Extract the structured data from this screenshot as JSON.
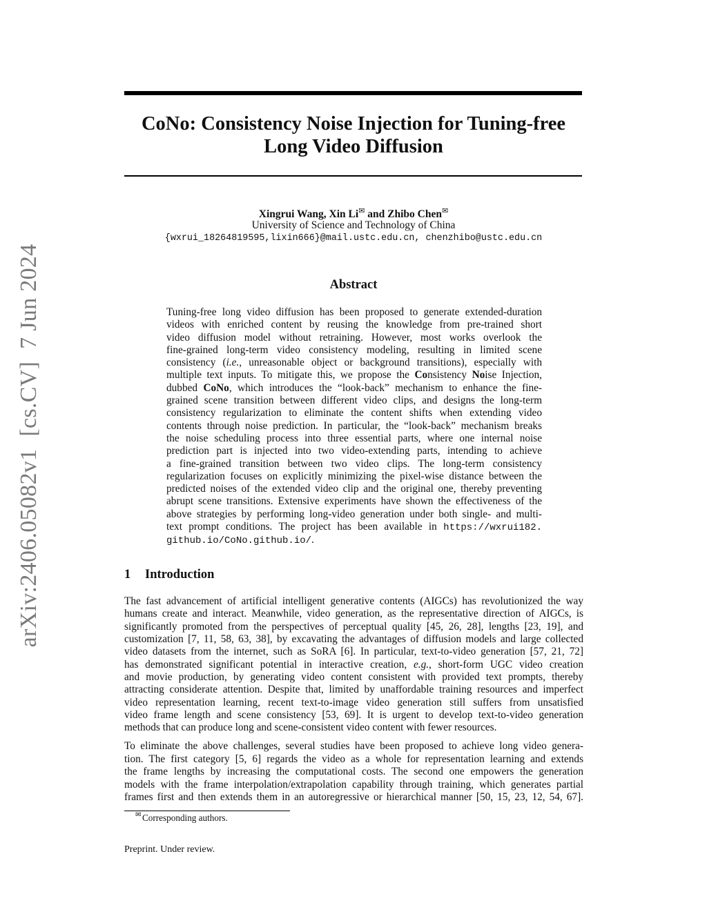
{
  "sidebar_stamp": {
    "id": "arXiv:2406.05082v1",
    "category": "[cs.CV]",
    "date": "7 Jun 2024"
  },
  "title": {
    "line1": "CoNo: Consistency Noise Injection for Tuning-free",
    "line2": "Long Video Diffusion"
  },
  "authors": {
    "names_a": "Xingrui Wang, Xin Li",
    "mark": "✉",
    "names_b": " and Zhibo Chen",
    "affiliation": "University of Science and Technology of China",
    "emails": "{wxrui_18264819595,lixin666}@mail.ustc.edu.cn, chenzhibo@ustc.edu.cn"
  },
  "abstract": {
    "heading": "Abstract",
    "lines": [
      [
        [
          "Tuning-free long video diffusion has been proposed to generate extended-duration"
        ]
      ],
      [
        [
          "videos with enriched content by reusing the knowledge from pre-trained short"
        ]
      ],
      [
        [
          "video diffusion model without retraining.  However, most works overlook the"
        ]
      ],
      [
        [
          "fine-grained long-term video consistency modeling, resulting in limited scene"
        ]
      ],
      [
        [
          "consistency ("
        ],
        [
          "i.e.",
          "i"
        ],
        [
          ", unreasonable object or background transitions), especially with"
        ]
      ],
      [
        [
          "multiple text inputs. To mitigate this, we propose the "
        ],
        [
          "Co",
          "b"
        ],
        [
          "nsistency "
        ],
        [
          "No",
          "b"
        ],
        [
          "ise Injection,"
        ]
      ],
      [
        [
          "dubbed "
        ],
        [
          "CoNo",
          "b"
        ],
        [
          ", which introduces the “look-back” mechanism to enhance the fine-"
        ]
      ],
      [
        [
          "grained scene transition between different video clips, and designs the long-term"
        ]
      ],
      [
        [
          "consistency regularization to eliminate the content shifts when extending video"
        ]
      ],
      [
        [
          "contents through noise prediction. In particular, the “look-back” mechanism breaks"
        ]
      ],
      [
        [
          "the noise scheduling process into three essential parts, where one internal noise"
        ]
      ],
      [
        [
          "prediction part is injected into two video-extending parts, intending to achieve"
        ]
      ],
      [
        [
          "a fine-grained transition between two video clips.  The long-term consistency"
        ]
      ],
      [
        [
          "regularization focuses on explicitly minimizing the pixel-wise distance between the"
        ]
      ],
      [
        [
          "predicted noises of the extended video clip and the original one, thereby preventing"
        ]
      ],
      [
        [
          "abrupt scene transitions. Extensive experiments have shown the effectiveness of the"
        ]
      ],
      [
        [
          "above strategies by performing long-video generation under both single- and multi-"
        ]
      ],
      [
        [
          "text prompt conditions. The project has been available in "
        ],
        [
          "https://wxrui182.",
          "m"
        ]
      ],
      [
        [
          "github.io/CoNo.github.io/",
          "m"
        ],
        [
          "."
        ]
      ]
    ]
  },
  "introduction": {
    "number": "1",
    "heading": "Introduction",
    "paragraph1": [
      [
        [
          "The fast advancement of artificial intelligent generative contents (AIGCs) has revolutionized the way"
        ]
      ],
      [
        [
          "humans create and interact. Meanwhile, video generation, as the representative direction of AIGCs, is"
        ]
      ],
      [
        [
          "significantly promoted from the perspectives of perceptual quality [45, 26, 28], lengths [23, 19], and"
        ]
      ],
      [
        [
          "customization [7, 11, 58, 63, 38], by excavating the advantages of diffusion models and large collected"
        ]
      ],
      [
        [
          "video datasets from the internet, such as SoRA [6]. In particular, text-to-video generation [57, 21, 72]"
        ]
      ],
      [
        [
          "has demonstrated significant potential in interactive creation, "
        ],
        [
          "e.g.",
          "i"
        ],
        [
          ", short-form UGC video creation"
        ]
      ],
      [
        [
          "and movie production, by generating video content consistent with provided text prompts, thereby"
        ]
      ],
      [
        [
          "attracting considerate attention. Despite that, limited by unaffordable training resources and imperfect"
        ]
      ],
      [
        [
          "video representation learning, recent text-to-image video generation still suffers from unsatisfied"
        ]
      ],
      [
        [
          "video frame length and scene consistency [53, 69]. It is urgent to develop text-to-video generation"
        ]
      ],
      [
        [
          "methods that can produce long and scene-consistent video content with fewer resources."
        ]
      ]
    ],
    "paragraph2": [
      [
        [
          "To eliminate the above challenges, several studies have been proposed to achieve long video genera-"
        ]
      ],
      [
        [
          "tion. The first category [5, 6] regards the video as a whole for representation learning and extends"
        ]
      ],
      [
        [
          "the frame lengths by increasing the computational costs. The second one empowers the generation"
        ]
      ],
      [
        [
          "models with the frame interpolation/extrapolation capability through training, which generates partial"
        ]
      ],
      [
        [
          "frames first and then extends them in an autoregressive or hierarchical manner [50, 15, 23, 12, 54, 67]."
        ]
      ]
    ]
  },
  "footnote": {
    "mark": "✉",
    "text": "Corresponding authors."
  },
  "footer": {
    "text": "Preprint. Under review."
  }
}
